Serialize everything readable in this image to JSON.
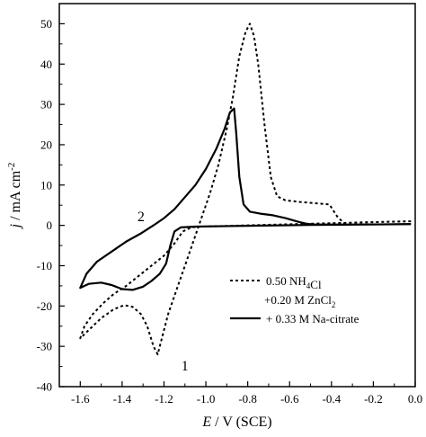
{
  "chart_data": {
    "type": "line",
    "xlabel": {
      "var": "E",
      "rest": " / V (SCE)"
    },
    "ylabel": {
      "var": "j",
      "rest": " / mA cm",
      "sup": "-2"
    },
    "xlim": [
      -1.7,
      0.0
    ],
    "ylim": [
      -40,
      55
    ],
    "xticks": [
      -1.6,
      -1.4,
      -1.2,
      -1.0,
      -0.8,
      -0.6,
      -0.4,
      -0.2,
      0.0
    ],
    "xtick_labels": [
      "-1.6",
      "-1.4",
      "-1.2",
      "-1.0",
      "-0.8",
      "-0.6",
      "-0.4",
      "-0.2",
      "0.0"
    ],
    "yticks": [
      -40,
      -30,
      -20,
      -10,
      0,
      10,
      20,
      30,
      40,
      50
    ],
    "ytick_labels": [
      "-40",
      "-30",
      "-20",
      "-10",
      "0",
      "10",
      "20",
      "30",
      "40",
      "50"
    ],
    "grid": false,
    "legend_position": "bottom-right",
    "legend": [
      {
        "style": "dotted",
        "parts": [
          {
            "text": "0.50 NH"
          },
          {
            "text": "4",
            "sub": true
          },
          {
            "text": "Cl"
          }
        ]
      },
      {
        "style": "none",
        "parts": [
          {
            "text": "+0.20 M ZnCl"
          },
          {
            "text": "2",
            "sub": true
          }
        ]
      },
      {
        "style": "solid",
        "parts": [
          {
            "text": "+ 0.33 M Na-citrate"
          }
        ]
      }
    ],
    "annotations": [
      {
        "text": "1",
        "x": -1.1,
        "y": -36
      },
      {
        "text": "2",
        "x": -1.31,
        "y": 1
      }
    ],
    "series": [
      {
        "style": "dotted",
        "points": [
          [
            -0.02,
            1.0
          ],
          [
            -0.2,
            0.8
          ],
          [
            -0.34,
            0.6
          ],
          [
            -0.37,
            2.0
          ],
          [
            -0.41,
            5.2
          ],
          [
            -0.48,
            5.5
          ],
          [
            -0.55,
            5.8
          ],
          [
            -0.62,
            6.2
          ],
          [
            -0.66,
            7.2
          ],
          [
            -0.69,
            12
          ],
          [
            -0.72,
            25
          ],
          [
            -0.75,
            40
          ],
          [
            -0.77,
            47
          ],
          [
            -0.79,
            50
          ],
          [
            -0.81,
            48
          ],
          [
            -0.84,
            42
          ],
          [
            -0.87,
            32
          ],
          [
            -0.9,
            24
          ],
          [
            -0.94,
            15
          ],
          [
            -0.98,
            8
          ],
          [
            -1.02,
            2
          ],
          [
            -1.06,
            -4
          ],
          [
            -1.1,
            -10
          ],
          [
            -1.14,
            -16
          ],
          [
            -1.18,
            -22
          ],
          [
            -1.21,
            -28
          ],
          [
            -1.23,
            -32
          ],
          [
            -1.25,
            -30
          ],
          [
            -1.28,
            -25
          ],
          [
            -1.31,
            -22
          ],
          [
            -1.35,
            -20.2
          ],
          [
            -1.39,
            -19.8
          ],
          [
            -1.44,
            -20.8
          ],
          [
            -1.5,
            -23
          ],
          [
            -1.55,
            -25.5
          ],
          [
            -1.6,
            -28
          ],
          [
            -1.58,
            -25
          ],
          [
            -1.54,
            -22
          ],
          [
            -1.49,
            -19.3
          ],
          [
            -1.44,
            -17
          ],
          [
            -1.38,
            -15
          ],
          [
            -1.32,
            -12.5
          ],
          [
            -1.26,
            -10
          ],
          [
            -1.2,
            -7.5
          ],
          [
            -1.15,
            -4.5
          ],
          [
            -1.11,
            -1.5
          ],
          [
            -1.07,
            -0.5
          ],
          [
            -1.02,
            -0.3
          ],
          [
            -0.8,
            0
          ],
          [
            -0.5,
            0.4
          ],
          [
            -0.02,
            1.0
          ]
        ]
      },
      {
        "style": "solid",
        "points": [
          [
            -0.02,
            0.3
          ],
          [
            -0.3,
            0.2
          ],
          [
            -0.48,
            0.2
          ],
          [
            -0.52,
            0.4
          ],
          [
            -0.56,
            0.9
          ],
          [
            -0.62,
            1.8
          ],
          [
            -0.68,
            2.5
          ],
          [
            -0.74,
            2.9
          ],
          [
            -0.79,
            3.4
          ],
          [
            -0.82,
            5.2
          ],
          [
            -0.84,
            12
          ],
          [
            -0.855,
            23
          ],
          [
            -0.865,
            29
          ],
          [
            -0.885,
            28
          ],
          [
            -0.91,
            24
          ],
          [
            -0.95,
            19
          ],
          [
            -1.0,
            14
          ],
          [
            -1.05,
            10
          ],
          [
            -1.1,
            7
          ],
          [
            -1.15,
            4
          ],
          [
            -1.2,
            1.8
          ],
          [
            -1.25,
            0
          ],
          [
            -1.31,
            -2
          ],
          [
            -1.38,
            -4
          ],
          [
            -1.45,
            -6.5
          ],
          [
            -1.52,
            -9
          ],
          [
            -1.57,
            -12
          ],
          [
            -1.6,
            -15.5
          ],
          [
            -1.56,
            -14.5
          ],
          [
            -1.5,
            -14.2
          ],
          [
            -1.45,
            -14.8
          ],
          [
            -1.4,
            -15.8
          ],
          [
            -1.35,
            -16
          ],
          [
            -1.3,
            -15.2
          ],
          [
            -1.26,
            -13.8
          ],
          [
            -1.22,
            -12
          ],
          [
            -1.19,
            -9.5
          ],
          [
            -1.17,
            -5
          ],
          [
            -1.15,
            -1.5
          ],
          [
            -1.12,
            -0.5
          ],
          [
            -1.05,
            -0.3
          ],
          [
            -0.8,
            -0.1
          ],
          [
            -0.5,
            0.1
          ],
          [
            -0.02,
            0.3
          ]
        ]
      }
    ]
  }
}
